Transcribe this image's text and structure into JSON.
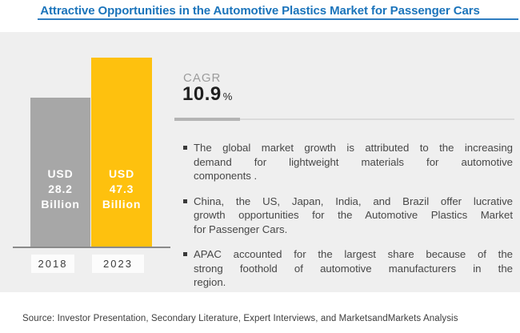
{
  "title": "Attractive Opportunities in the Automotive Plastics Market for Passenger Cars",
  "colors": {
    "title_blue": "#1b74bb",
    "title_rule_blue": "#2f7dc0",
    "panel_bg": "#efefef",
    "bar_2018_gray": "#a7a7a7",
    "bar_2023_yellow": "#fec10e",
    "axis_gray": "#8a8a8a",
    "divider_dark": "#b4b4b4",
    "divider_light": "#dadada",
    "body_text": "#474747"
  },
  "chart_data": {
    "type": "bar",
    "title": "Automotive Plastics Market for Passenger Cars market size",
    "categories": [
      "2018",
      "2023"
    ],
    "values": [
      28.2,
      47.3
    ],
    "unit": "USD Billion",
    "bar_labels": [
      [
        "USD",
        "28.2",
        "Billion"
      ],
      [
        "USD",
        "47.3",
        "Billion"
      ]
    ],
    "bar_colors": [
      "#a7a7a7",
      "#fec10e"
    ],
    "xlabel": "",
    "ylabel": "",
    "ylim": [
      0,
      47.3
    ],
    "grid": false,
    "legend": false,
    "annotations": [
      "CAGR 10.9%"
    ]
  },
  "cagr": {
    "label": "CAGR",
    "value": "10.9",
    "unit": "%"
  },
  "bullets": [
    {
      "lines": [
        "The global market growth is attributed to the increasing",
        "demand for lightweight materials for automotive",
        "components ."
      ]
    },
    {
      "lines": [
        "China, the US, Japan, India, and Brazil offer lucrative",
        "growth opportunities for the Automotive Plastics Market",
        "for Passenger Cars."
      ]
    },
    {
      "lines": [
        "APAC accounted for the largest share because of the",
        "strong foothold of automotive manufacturers in the",
        "region."
      ]
    }
  ],
  "source": "Source: Investor Presentation, Secondary Literature, Expert Interviews, and MarketsandMarkets Analysis"
}
